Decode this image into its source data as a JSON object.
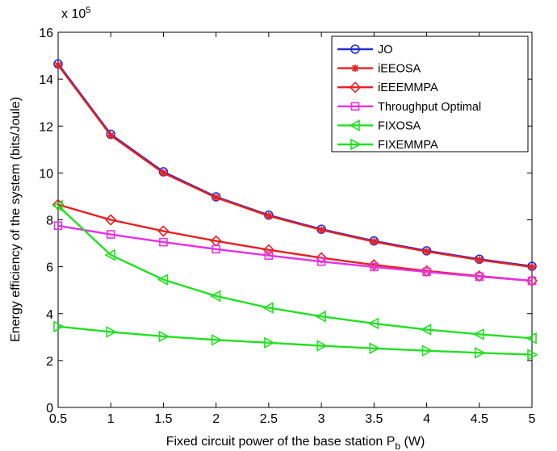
{
  "chart_data": {
    "type": "line",
    "xlabel": "Fixed circuit power of the base station P",
    "xlabel_subscript": "b",
    "xlabel_unit": "(W)",
    "ylabel": "Energy efficiency of the system  (bits/Joule)",
    "y_multiplier_base": "x 10",
    "y_multiplier_exp": "5",
    "xlim": [
      0.5,
      5
    ],
    "ylim": [
      0,
      16
    ],
    "x_ticks": [
      0.5,
      1,
      1.5,
      2,
      2.5,
      3,
      3.5,
      4,
      4.5,
      5
    ],
    "y_ticks": [
      0,
      2,
      4,
      6,
      8,
      10,
      12,
      14,
      16
    ],
    "grid": false,
    "legend_position": "top-right",
    "x": [
      0.5,
      1,
      1.5,
      2,
      2.5,
      3,
      3.5,
      4,
      4.5,
      5
    ],
    "series": [
      {
        "name": "JO",
        "color": "#1f2fd6",
        "marker": "circle",
        "values": [
          14.65,
          11.65,
          10.05,
          8.98,
          8.2,
          7.6,
          7.1,
          6.68,
          6.32,
          6.02
        ]
      },
      {
        "name": "iEEOSA",
        "color": "#e82020",
        "marker": "asterisk",
        "values": [
          14.6,
          11.6,
          10.0,
          8.95,
          8.17,
          7.57,
          7.07,
          6.65,
          6.29,
          5.99
        ]
      },
      {
        "name": "iEEEMMPA",
        "color": "#e82020",
        "marker": "diamond",
        "values": [
          8.65,
          8.0,
          7.52,
          7.1,
          6.72,
          6.38,
          6.08,
          5.82,
          5.6,
          5.4
        ]
      },
      {
        "name": "Throughput Optimal",
        "color": "#e830e8",
        "marker": "square",
        "values": [
          7.75,
          7.38,
          7.05,
          6.75,
          6.48,
          6.22,
          5.99,
          5.78,
          5.58,
          5.4
        ]
      },
      {
        "name": "FIXOSA",
        "color": "#22e022",
        "marker": "triangle-left",
        "values": [
          8.6,
          6.5,
          5.45,
          4.75,
          4.25,
          3.88,
          3.58,
          3.32,
          3.12,
          2.95
        ]
      },
      {
        "name": "FIXEMMPA",
        "color": "#22e022",
        "marker": "triangle-right",
        "values": [
          3.45,
          3.22,
          3.03,
          2.88,
          2.76,
          2.63,
          2.52,
          2.42,
          2.33,
          2.25
        ]
      }
    ]
  }
}
